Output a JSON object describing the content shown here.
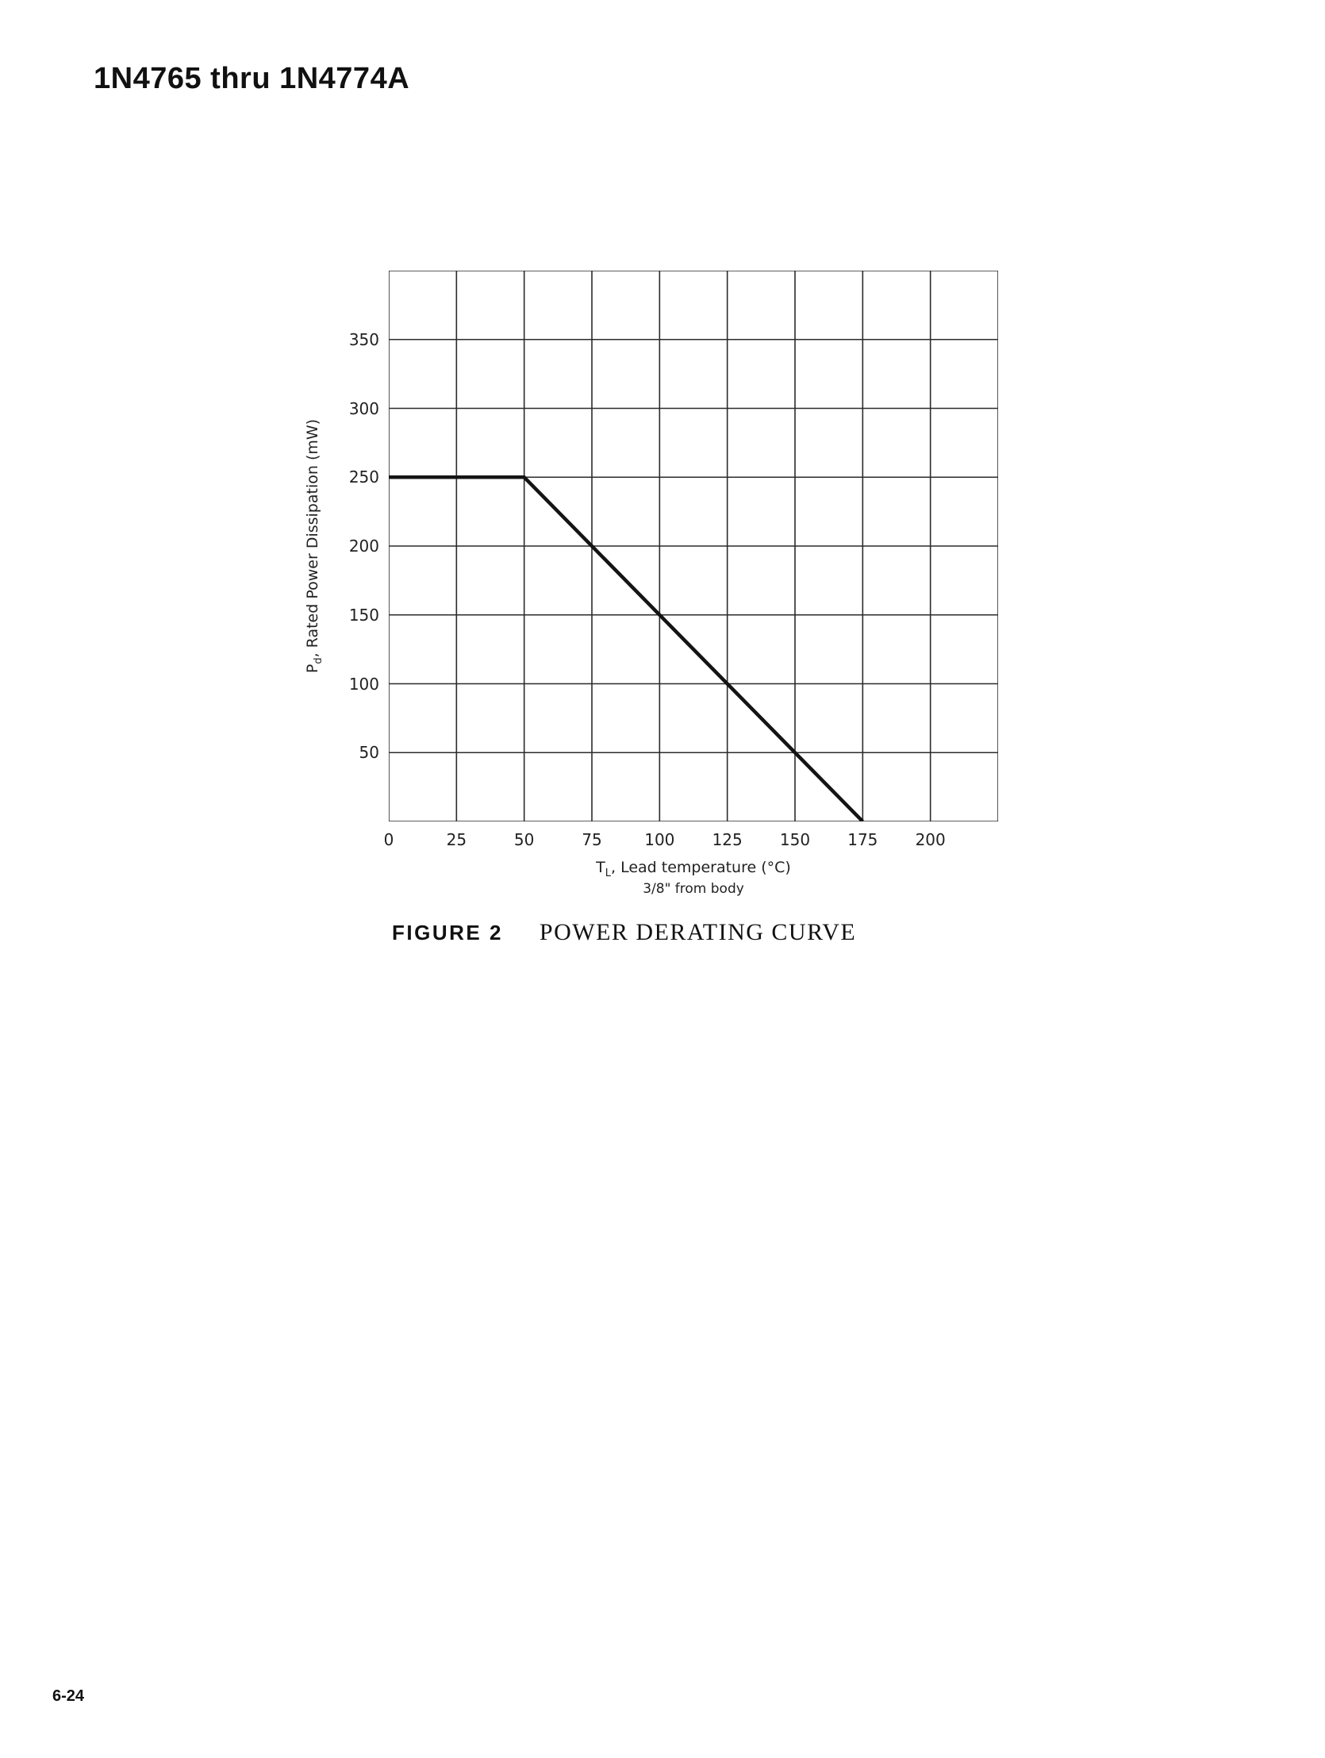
{
  "page": {
    "heading": "1N4765 thru 1N4774A",
    "page_number": "6-24"
  },
  "figure": {
    "label": "FIGURE 2",
    "title": "POWER DERATING CURVE"
  },
  "axes": {
    "y_title_main": "P",
    "y_title_sub": "d",
    "y_title_rest": ", Rated Power Dissipation  (mW)",
    "x_title_main": "T",
    "x_title_sub": "L",
    "x_title_rest": ", Lead temperature (°C)",
    "x_subtitle": "3/8\" from body"
  },
  "chart_data": {
    "type": "line",
    "title": "POWER DERATING CURVE",
    "xlabel": "TL, Lead temperature (°C) 3/8\" from body",
    "ylabel": "Pd, Rated Power Dissipation (mW)",
    "xlim": [
      0,
      225
    ],
    "ylim": [
      0,
      400
    ],
    "x_grid_step": 25,
    "y_grid_step": 50,
    "x_ticks": [
      0,
      25,
      50,
      75,
      100,
      125,
      150,
      175,
      200
    ],
    "y_ticks": [
      50,
      100,
      150,
      200,
      250,
      300,
      350
    ],
    "grid": true,
    "legend": "none",
    "grid_color": "#2b2b2b",
    "line_color": "#141414",
    "series": [
      {
        "name": "rated-power-derating",
        "points": [
          [
            0,
            250
          ],
          [
            50,
            250
          ],
          [
            175,
            0
          ]
        ]
      }
    ]
  }
}
